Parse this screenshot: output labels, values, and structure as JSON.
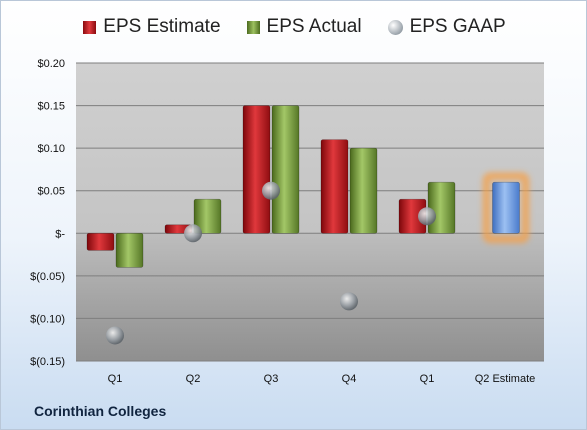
{
  "chart_data": {
    "type": "bar",
    "categories": [
      "Q1",
      "Q2",
      "Q3",
      "Q4",
      "Q1",
      "Q2 Estimate"
    ],
    "series": [
      {
        "name": "EPS Estimate",
        "values": [
          -0.02,
          0.01,
          0.15,
          0.11,
          0.04,
          null
        ],
        "color": "#c6262b"
      },
      {
        "name": "EPS Actual",
        "values": [
          -0.04,
          0.04,
          0.15,
          0.1,
          0.06,
          null
        ],
        "color": "#7ea13f"
      },
      {
        "name": "EPS GAAP",
        "values": [
          -0.12,
          0.0,
          0.05,
          -0.08,
          0.02,
          null
        ],
        "color": "#9aa3ab"
      }
    ],
    "projection": {
      "category": "Q2 Estimate",
      "value": 0.06,
      "color": "#6a9ae0",
      "highlight": "#f5a04a"
    },
    "ylim": [
      -0.15,
      0.2
    ],
    "yticks": [
      0.2,
      0.15,
      0.1,
      0.05,
      0,
      -0.05,
      -0.1,
      -0.15
    ],
    "ytick_labels": [
      "$0.20",
      "$0.15",
      "$0.10",
      "$0.05",
      "$-",
      "$(0.05)",
      "$(0.10)",
      "$(0.15)"
    ],
    "grid": true,
    "legend_position": "top"
  },
  "footer": {
    "company": "Corinthian Colleges"
  }
}
